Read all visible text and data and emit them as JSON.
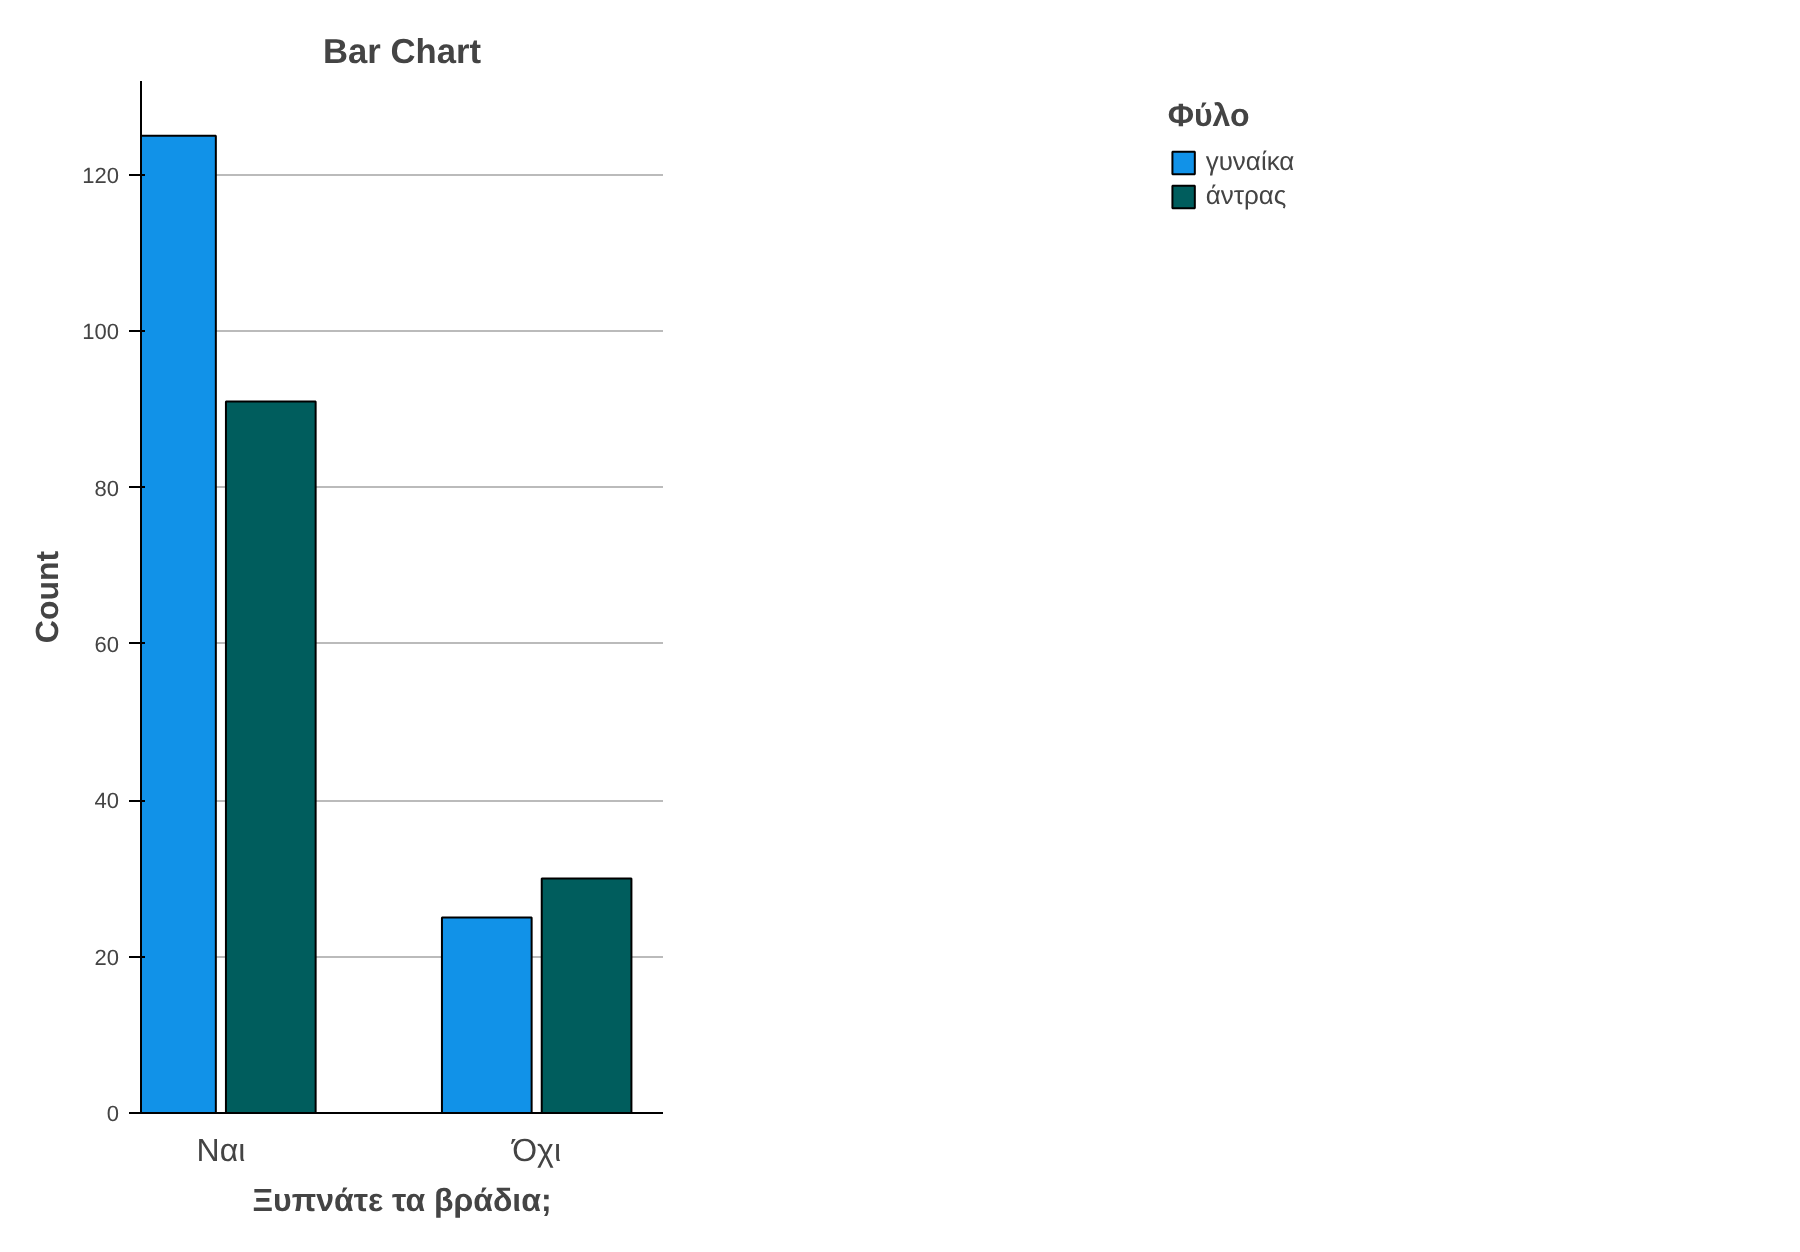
{
  "chart_data": {
    "type": "bar",
    "title": "Bar Chart",
    "xlabel": "Ξυπνάτε τα βράδια;",
    "ylabel": "Count",
    "legend_title": "Φύλο",
    "categories": [
      "Ναι",
      "Όχι"
    ],
    "series": [
      {
        "name": "γυναίκα",
        "color": "#1192e8",
        "values": [
          125,
          25
        ]
      },
      {
        "name": "άντρας",
        "color": "#005d5d",
        "values": [
          91,
          30
        ]
      }
    ],
    "ylim": [
      0,
      132
    ],
    "yticks": [
      0,
      20,
      40,
      60,
      80,
      100,
      120
    ],
    "grid": "y",
    "legend": "top right"
  }
}
